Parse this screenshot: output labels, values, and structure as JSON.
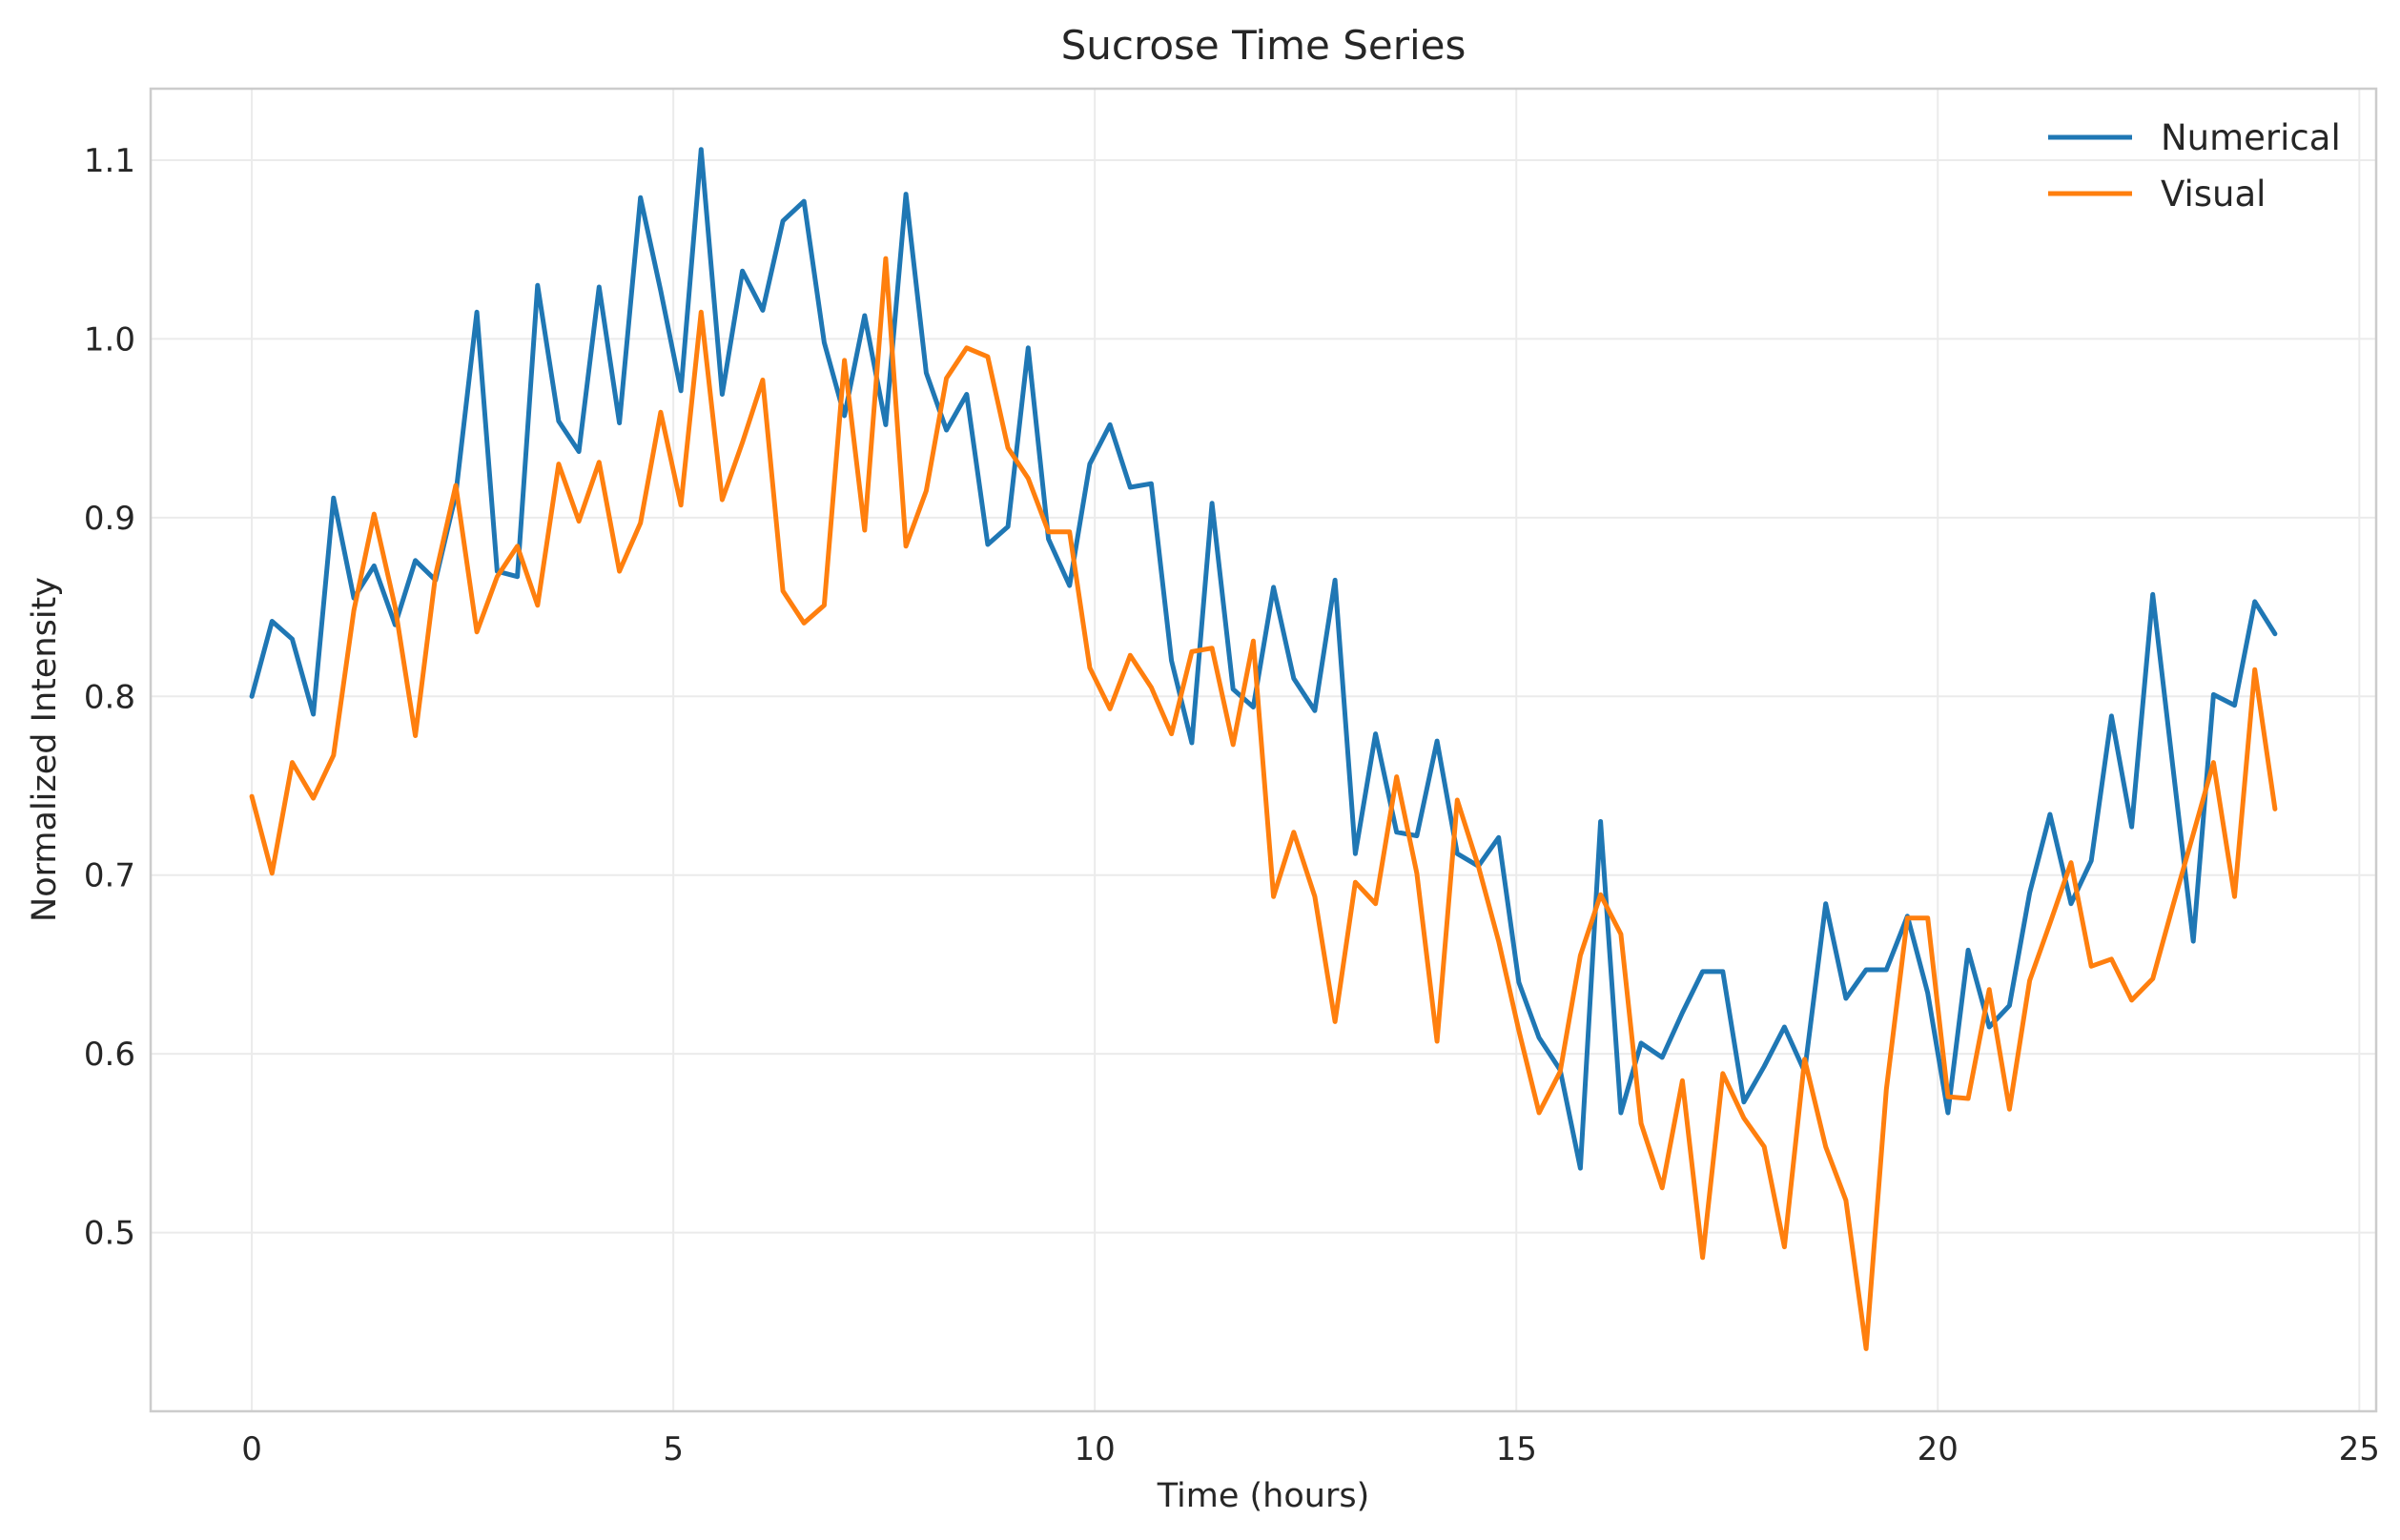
{
  "chart_data": {
    "type": "line",
    "title": "Sucrose Time Series",
    "xlabel": "Time (hours)",
    "ylabel": "Normalized Intensity",
    "xlim": [
      -1.2,
      25.2
    ],
    "ylim": [
      0.4,
      1.14
    ],
    "xticks": [
      0,
      5,
      10,
      15,
      20,
      25
    ],
    "yticks": [
      0.5,
      0.6,
      0.7,
      0.8,
      0.9,
      1.0,
      1.1
    ],
    "xtick_labels": [
      "0",
      "5",
      "10",
      "15",
      "20",
      "25"
    ],
    "ytick_labels": [
      "0.5",
      "0.6",
      "0.7",
      "0.8",
      "0.9",
      "1.0",
      "1.1"
    ],
    "grid": true,
    "legend_position": "top-right",
    "x": [
      0,
      0.24,
      0.48,
      0.73,
      0.97,
      1.21,
      1.45,
      1.7,
      1.94,
      2.18,
      2.42,
      2.67,
      2.91,
      3.15,
      3.39,
      3.64,
      3.88,
      4.12,
      4.36,
      4.61,
      4.85,
      5.09,
      5.33,
      5.58,
      5.82,
      6.06,
      6.3,
      6.55,
      6.79,
      7.03,
      7.27,
      7.52,
      7.76,
      8,
      8.24,
      8.48,
      8.73,
      8.97,
      9.21,
      9.45,
      9.7,
      9.94,
      10.18,
      10.42,
      10.67,
      10.91,
      11.15,
      11.39,
      11.64,
      11.88,
      12.12,
      12.36,
      12.61,
      12.85,
      13.09,
      13.33,
      13.58,
      13.82,
      14.06,
      14.3,
      14.55,
      14.79,
      15.03,
      15.27,
      15.52,
      15.76,
      16,
      16.24,
      16.48,
      16.73,
      16.97,
      17.21,
      17.45,
      17.7,
      17.94,
      18.18,
      18.42,
      18.67,
      18.91,
      19.15,
      19.39,
      19.64,
      19.88,
      20.12,
      20.36,
      20.61,
      20.85,
      21.09,
      21.33,
      21.58,
      21.82,
      22.06,
      22.3,
      22.55,
      22.79,
      23.03,
      23.27,
      23.52,
      23.76,
      24
    ],
    "series": [
      {
        "name": "Numerical",
        "color": "#1f77b4",
        "values": [
          0.8,
          0.842,
          0.832,
          0.79,
          0.911,
          0.855,
          0.873,
          0.84,
          0.876,
          0.865,
          0.913,
          1.015,
          0.87,
          0.867,
          1.03,
          0.954,
          0.937,
          1.029,
          0.953,
          1.079,
          1.027,
          0.971,
          1.106,
          0.969,
          1.038,
          1.016,
          1.066,
          1.077,
          0.998,
          0.957,
          1.013,
          0.952,
          1.081,
          0.981,
          0.949,
          0.969,
          0.885,
          0.895,
          0.995,
          0.888,
          0.862,
          0.93,
          0.952,
          0.917,
          0.919,
          0.82,
          0.774,
          0.908,
          0.804,
          0.794,
          0.861,
          0.81,
          0.792,
          0.865,
          0.712,
          0.779,
          0.724,
          0.722,
          0.775,
          0.712,
          0.705,
          0.721,
          0.64,
          0.609,
          0.591,
          0.536,
          0.73,
          0.567,
          0.606,
          0.598,
          0.623,
          0.646,
          0.646,
          0.573,
          0.593,
          0.615,
          0.59,
          0.684,
          0.631,
          0.647,
          0.647,
          0.677,
          0.634,
          0.567,
          0.658,
          0.615,
          0.627,
          0.69,
          0.734,
          0.684,
          0.708,
          0.789,
          0.727,
          0.857,
          0.76,
          0.663,
          0.801,
          0.795,
          0.853,
          0.835
        ]
      },
      {
        "name": "Visual",
        "color": "#ff7f0e",
        "values": [
          0.744,
          0.701,
          0.763,
          0.743,
          0.767,
          0.848,
          0.902,
          0.85,
          0.778,
          0.868,
          0.918,
          0.836,
          0.867,
          0.884,
          0.851,
          0.93,
          0.898,
          0.931,
          0.87,
          0.897,
          0.959,
          0.907,
          1.015,
          0.91,
          0.942,
          0.977,
          0.859,
          0.841,
          0.851,
          0.988,
          0.893,
          1.045,
          0.884,
          0.915,
          0.978,
          0.995,
          0.99,
          0.939,
          0.922,
          0.892,
          0.892,
          0.816,
          0.793,
          0.823,
          0.805,
          0.779,
          0.825,
          0.827,
          0.773,
          0.831,
          0.688,
          0.724,
          0.688,
          0.618,
          0.696,
          0.684,
          0.755,
          0.701,
          0.607,
          0.742,
          0.705,
          0.663,
          0.613,
          0.567,
          0.59,
          0.655,
          0.689,
          0.667,
          0.561,
          0.525,
          0.585,
          0.486,
          0.589,
          0.564,
          0.548,
          0.492,
          0.597,
          0.548,
          0.518,
          0.435,
          0.58,
          0.676,
          0.676,
          0.576,
          0.575,
          0.636,
          0.569,
          0.641,
          0.673,
          0.707,
          0.649,
          0.653,
          0.63,
          0.642,
          0.683,
          0.723,
          0.763,
          0.688,
          0.815,
          0.737
        ]
      }
    ]
  }
}
